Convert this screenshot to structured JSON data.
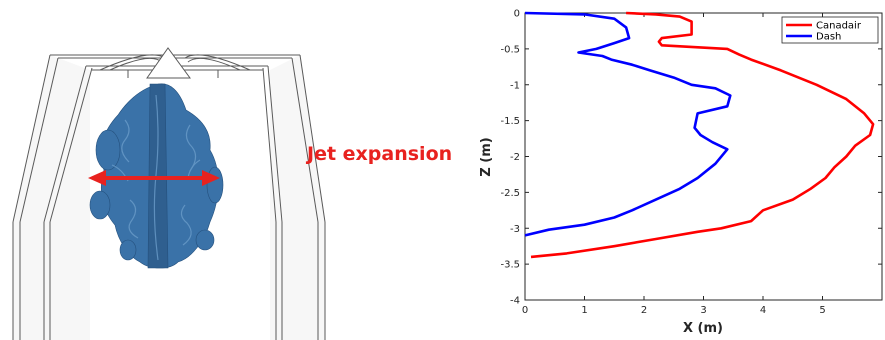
{
  "illustration": {
    "annotation": "Jet expansion",
    "arrow_color": "#e8221f",
    "plume_color": "#3a72a8"
  },
  "chart_data": {
    "type": "line",
    "title": "",
    "xlabel": "X (m)",
    "ylabel": "Z (m)",
    "xlim": [
      0,
      6
    ],
    "ylim": [
      -4,
      0
    ],
    "xticks": [
      0,
      1,
      2,
      3,
      4,
      5
    ],
    "yticks": [
      0,
      -0.5,
      -1,
      -1.5,
      -2,
      -2.5,
      -3,
      -3.5,
      -4
    ],
    "grid": false,
    "legend_position": "top-right",
    "series": [
      {
        "name": "Canadair",
        "color": "#ff0000",
        "x": [
          1.7,
          2.2,
          2.6,
          2.8,
          2.8,
          2.3,
          2.25,
          2.3,
          3.4,
          3.6,
          3.8,
          4.3,
          4.9,
          5.4,
          5.7,
          5.85,
          5.8,
          5.55,
          5.4,
          5.2,
          5.05,
          4.8,
          4.5,
          4.0,
          3.8,
          3.3,
          2.9,
          2.2,
          1.5,
          0.7,
          0.1
        ],
        "y": [
          0,
          -0.02,
          -0.05,
          -0.12,
          -0.3,
          -0.35,
          -0.4,
          -0.45,
          -0.5,
          -0.58,
          -0.65,
          -0.8,
          -1.0,
          -1.2,
          -1.4,
          -1.55,
          -1.7,
          -1.85,
          -2.0,
          -2.15,
          -2.3,
          -2.45,
          -2.6,
          -2.75,
          -2.9,
          -3.0,
          -3.05,
          -3.15,
          -3.25,
          -3.35,
          -3.4
        ]
      },
      {
        "name": "Dash",
        "color": "#0000ff",
        "x": [
          0.0,
          1.0,
          1.5,
          1.7,
          1.75,
          1.5,
          1.2,
          0.9,
          1.3,
          1.45,
          1.8,
          2.1,
          2.5,
          2.8,
          3.2,
          3.45,
          3.4,
          2.9,
          2.85,
          2.95,
          3.15,
          3.4,
          3.2,
          2.9,
          2.6,
          2.2,
          1.8,
          1.5,
          1.0,
          0.4,
          0.0
        ],
        "y": [
          0,
          -0.02,
          -0.08,
          -0.2,
          -0.35,
          -0.42,
          -0.5,
          -0.55,
          -0.6,
          -0.65,
          -0.72,
          -0.8,
          -0.9,
          -1.0,
          -1.05,
          -1.15,
          -1.3,
          -1.4,
          -1.6,
          -1.7,
          -1.8,
          -1.9,
          -2.1,
          -2.3,
          -2.45,
          -2.6,
          -2.75,
          -2.85,
          -2.95,
          -3.02,
          -3.1
        ]
      }
    ]
  }
}
